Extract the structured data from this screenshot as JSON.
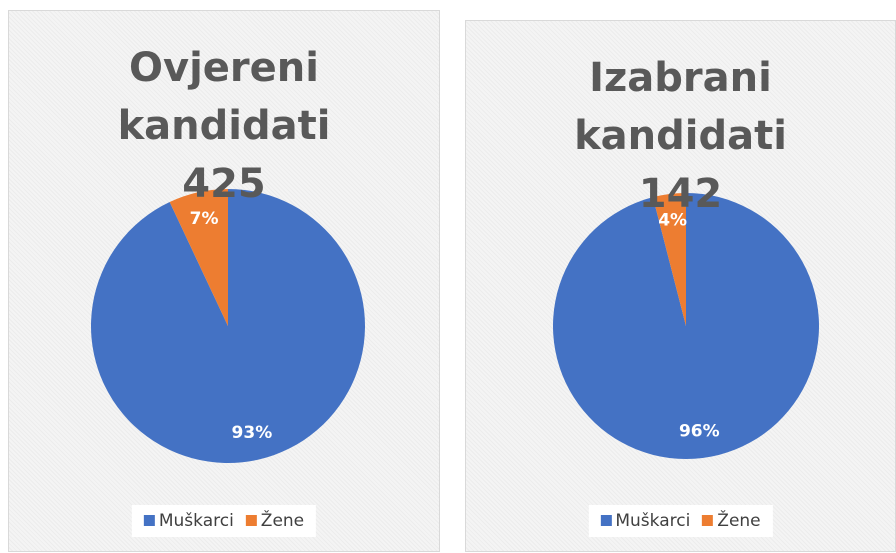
{
  "chart_data": [
    {
      "type": "pie",
      "title": "Ovjereni kandidati 425",
      "categories": [
        "Muškarci",
        "Žene"
      ],
      "values": [
        93,
        7
      ],
      "value_labels": [
        "93%",
        "7%"
      ],
      "colors": [
        "#4472c4",
        "#ed7d31"
      ],
      "legend": "bottom"
    },
    {
      "type": "pie",
      "title": "Izabrani kandidati 142",
      "categories": [
        "Muškarci",
        "Žene"
      ],
      "values": [
        96,
        4
      ],
      "value_labels": [
        "96%",
        "4%"
      ],
      "colors": [
        "#4472c4",
        "#ed7d31"
      ],
      "legend": "bottom"
    }
  ]
}
